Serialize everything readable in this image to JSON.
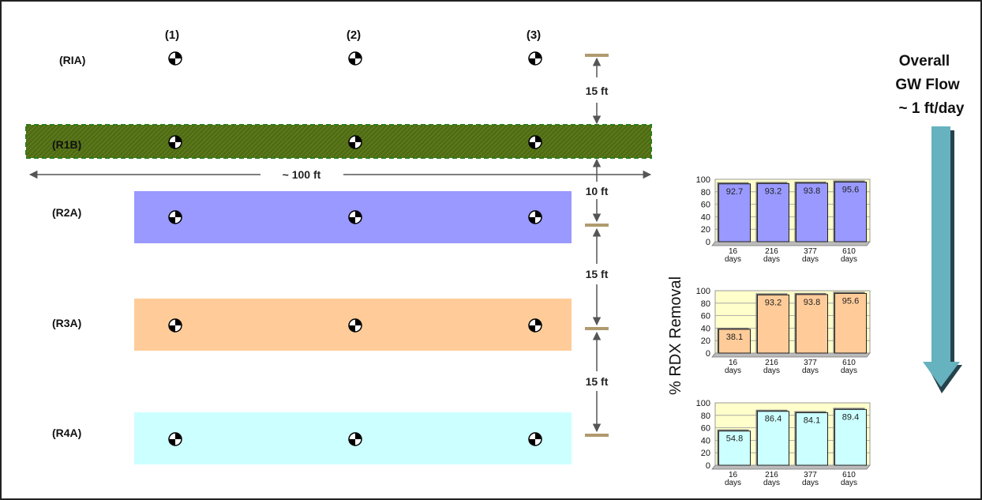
{
  "columns": [
    "(1)",
    "(2)",
    "(3)"
  ],
  "rows": [
    {
      "label": "(RIA)",
      "fill": "none"
    },
    {
      "label": "(R1B)",
      "fill": "#4f6b14"
    },
    {
      "label": "(R2A)",
      "fill": "#9999ff"
    },
    {
      "label": "(R3A)",
      "fill": "#ffcc99"
    },
    {
      "label": "(R4A)",
      "fill": "#ccffff"
    }
  ],
  "distances": {
    "rowA_to_rowB": "15 ft",
    "rowB_to_row2": "10 ft",
    "row2_to_row3": "15 ft",
    "row3_to_row4": "15 ft",
    "width": "~ 100 ft"
  },
  "flow": {
    "lines": [
      "Overall",
      "GW Flow",
      "~ 1 ft/day"
    ],
    "arrow_color": "#66b2bf"
  },
  "y_axis_label": "% RDX Removal",
  "chart_data": [
    {
      "type": "bar",
      "categories": [
        "16 days",
        "216 days",
        "377 days",
        "610 days"
      ],
      "values": [
        92.7,
        93.2,
        93.8,
        95.6
      ],
      "yticks": [
        0,
        20,
        40,
        60,
        80,
        100
      ],
      "ylim": [
        0,
        100
      ],
      "bar_color": "#9999ff",
      "background": "#ffffcc"
    },
    {
      "type": "bar",
      "categories": [
        "16 days",
        "216 days",
        "377 days",
        "610 days"
      ],
      "values": [
        38.1,
        93.2,
        93.8,
        95.6
      ],
      "yticks": [
        0,
        20,
        40,
        60,
        80,
        100
      ],
      "ylim": [
        0,
        100
      ],
      "bar_color": "#ffcc99",
      "background": "#ffffcc"
    },
    {
      "type": "bar",
      "categories": [
        "16 days",
        "216 days",
        "377 days",
        "610 days"
      ],
      "values": [
        54.8,
        86.4,
        84.1,
        89.4
      ],
      "yticks": [
        0,
        20,
        40,
        60,
        80,
        100
      ],
      "ylim": [
        0,
        100
      ],
      "bar_color": "#ccffff",
      "background": "#ffffcc"
    }
  ]
}
